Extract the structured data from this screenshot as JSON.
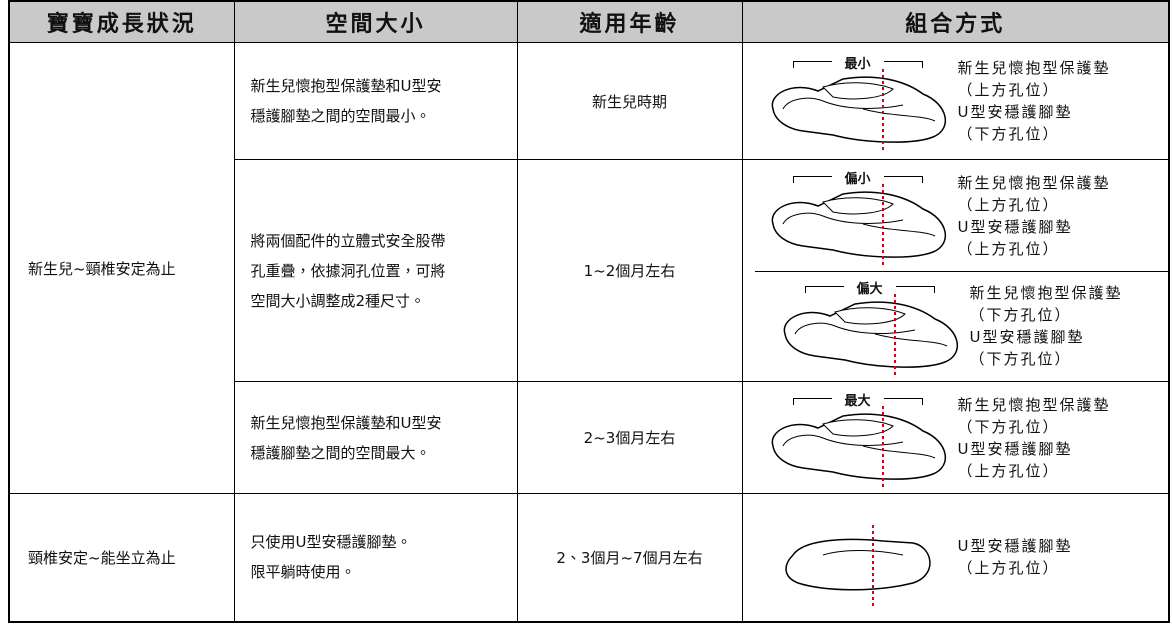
{
  "table": {
    "header": [
      "寶寶成長狀況",
      "空間大小",
      "適用年齡",
      "組合方式"
    ],
    "stages": [
      "新生兒~頸椎安定為止",
      "頸椎安定~能坐立為止"
    ],
    "rows": [
      {
        "space": [
          "新生兒懷抱型保護墊和U型安",
          "穩護腳墊之間的空間最小。"
        ],
        "age": "新生兒時期",
        "combos": [
          {
            "size": "最小",
            "lines": [
              "新生兒懷抱型保護墊",
              "（上方孔位）",
              "U型安穩護腳墊",
              "（下方孔位）"
            ]
          }
        ]
      },
      {
        "space": [
          "將兩個配件的立體式安全股帶",
          "孔重疊，依據洞孔位置，可將",
          "空間大小調整成2種尺寸。"
        ],
        "age": "1~2個月左右",
        "combos": [
          {
            "size": "偏小",
            "lines": [
              "新生兒懷抱型保護墊",
              "（上方孔位）",
              "U型安穩護腳墊",
              "（上方孔位）"
            ]
          },
          {
            "size": "偏大",
            "lines": [
              "新生兒懷抱型保護墊",
              "（下方孔位）",
              "U型安穩護腳墊",
              "（下方孔位）"
            ]
          }
        ]
      },
      {
        "space": [
          "新生兒懷抱型保護墊和U型安",
          "穩護腳墊之間的空間最大。"
        ],
        "age": "2~3個月左右",
        "combos": [
          {
            "size": "最大",
            "lines": [
              "新生兒懷抱型保護墊",
              "（下方孔位）",
              "U型安穩護腳墊",
              "（上方孔位）"
            ]
          }
        ]
      },
      {
        "space": [
          "只使用U型安穩護腳墊。",
          "限平躺時使用。"
        ],
        "age": "2、3個月~7個月左右",
        "combos": [
          {
            "lines": [
              "U型安穩護腳墊",
              "（上方孔位）"
            ]
          }
        ]
      }
    ]
  }
}
